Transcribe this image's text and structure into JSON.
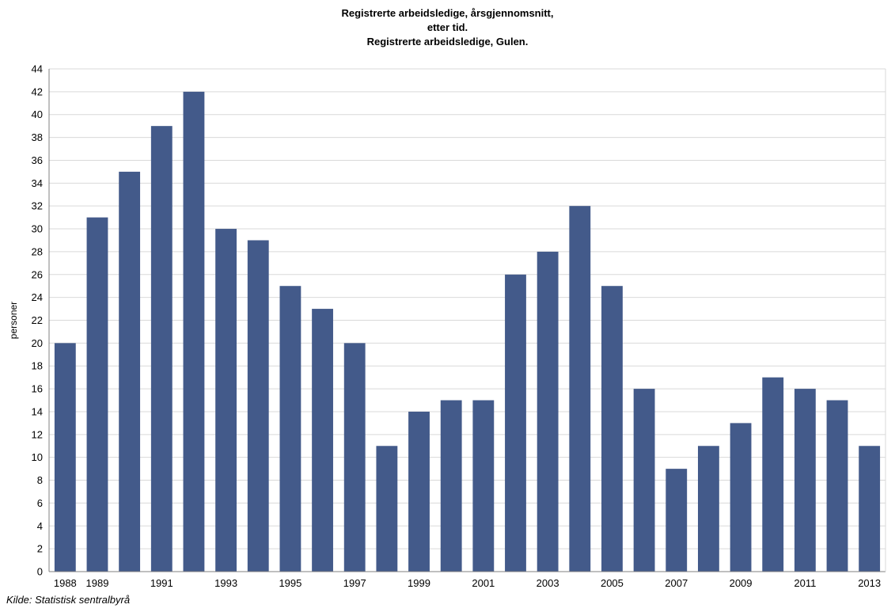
{
  "chart_data": {
    "type": "bar",
    "title_lines": [
      "Registrerte arbeidsledige, årsgjennomsnitt,",
      "etter tid.",
      "Registrerte arbeidsledige, Gulen."
    ],
    "xlabel": "",
    "ylabel": "personer",
    "ylim": [
      0,
      44
    ],
    "ytick_step": 2,
    "grid": true,
    "categories": [
      "1988",
      "1989",
      "1990",
      "1991",
      "1992",
      "1993",
      "1994",
      "1995",
      "1996",
      "1997",
      "1998",
      "1999",
      "2000",
      "2001",
      "2002",
      "2003",
      "2004",
      "2005",
      "2006",
      "2007",
      "2008",
      "2009",
      "2010",
      "2011",
      "2012",
      "2013"
    ],
    "xtick_labels": [
      "1988",
      "1989",
      "1991",
      "1993",
      "1995",
      "1997",
      "1999",
      "2001",
      "2003",
      "2005",
      "2007",
      "2009",
      "2011",
      "2013"
    ],
    "values": [
      20,
      31,
      35,
      39,
      42,
      30,
      29,
      25,
      23,
      20,
      11,
      14,
      15,
      15,
      26,
      28,
      32,
      25,
      16,
      9,
      11,
      13,
      17,
      16,
      15,
      11
    ],
    "bar_color": "#435a8a",
    "source": "Kilde: Statistisk sentralbyrå"
  }
}
